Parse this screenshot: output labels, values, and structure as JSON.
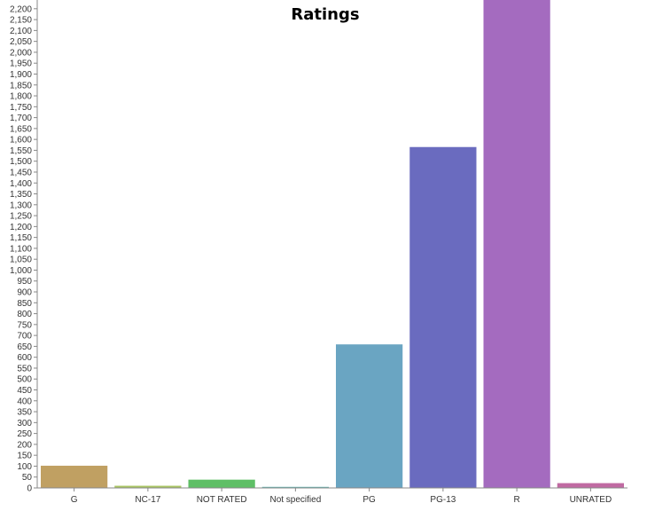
{
  "chart_data": {
    "type": "bar",
    "title": "Ratings",
    "xlabel": "",
    "ylabel": "",
    "categories": [
      "G",
      "NC-17",
      "NOT RATED",
      "Not specified",
      "PG",
      "PG-13",
      "R",
      "UNRATED"
    ],
    "values": [
      102,
      10,
      38,
      5,
      659,
      1565,
      2255,
      22
    ],
    "colors": [
      "#c0a062",
      "#a9c564",
      "#5fbf66",
      "#6ab9b5",
      "#6aa5c2",
      "#6a6bbf",
      "#a46bbf",
      "#c06aa2"
    ],
    "ylim": [
      0,
      2240
    ],
    "ytick_step": 50,
    "grid": false,
    "legend": "none"
  }
}
